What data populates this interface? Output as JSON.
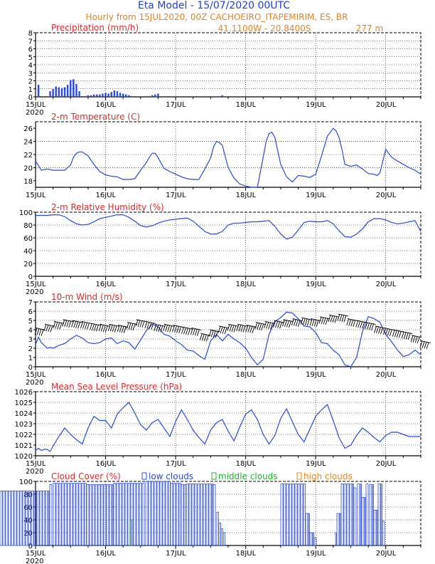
{
  "header": {
    "title": "Eta Model - 15/07/2020 00UTC",
    "line2": "Hourly from 15JUL2020, 00Z   CACHOEIRO_ITAPEMIRIM, ES, BR",
    "coords": "41.1100W - 20.8400S",
    "elevation": "277   m"
  },
  "colors": {
    "title": "#1f3fdc",
    "subtitle": "#e8821e",
    "panel_title": "#e8262b",
    "series": "#2848e8",
    "low_clouds": "#2848e8",
    "middle_clouds": "#1fae2a",
    "high_clouds": "#e8821e"
  },
  "x_axis": {
    "day_labels": [
      "15JUL",
      "16JUL",
      "17JUL",
      "18JUL",
      "19JUL",
      "20JUL"
    ],
    "year_label": "2020",
    "hours": [
      0,
      132
    ]
  },
  "chart_data": [
    {
      "type": "bar",
      "title": "Precipitation (mm/h)",
      "ylim": [
        0,
        8
      ],
      "yticks": [
        0,
        1,
        2,
        3,
        4,
        5,
        6,
        7,
        8
      ],
      "year_shown": true,
      "x_hours": [
        1,
        2,
        5,
        6,
        7,
        8,
        9,
        10,
        11,
        12,
        13,
        14,
        15,
        16,
        17,
        18,
        19,
        20,
        21,
        22,
        23,
        24,
        25,
        26,
        27,
        28,
        29,
        30,
        31,
        32,
        33,
        40,
        41,
        42,
        64,
        108
      ],
      "values": [
        1.5,
        0.1,
        0.7,
        1.0,
        1.3,
        1.2,
        1.1,
        1.2,
        1.5,
        2.1,
        2.2,
        1.6,
        0.7,
        0.1,
        0.1,
        0.2,
        0.2,
        0.3,
        0.3,
        0.3,
        0.4,
        0.5,
        0.4,
        0.6,
        0.8,
        0.7,
        0.5,
        0.4,
        0.3,
        0.2,
        0.1,
        0.2,
        0.3,
        0.4,
        0.2,
        0.1
      ]
    },
    {
      "type": "line",
      "title": "2-m Temperature (C)",
      "ylim": [
        17,
        27
      ],
      "yticks": [
        18,
        20,
        22,
        24,
        26
      ],
      "year_shown": false,
      "x": [
        0,
        2,
        4,
        6,
        8,
        10,
        12,
        13,
        14,
        15,
        16,
        18,
        20,
        22,
        24,
        26,
        28,
        30,
        32,
        34,
        36,
        38,
        39,
        40,
        41,
        42,
        44,
        46,
        48,
        50,
        52,
        54,
        56,
        58,
        60,
        61,
        62,
        63,
        64,
        66,
        68,
        70,
        72,
        74,
        76,
        78,
        79,
        80,
        81,
        82,
        84,
        86,
        88,
        90,
        92,
        94,
        96,
        98,
        100,
        102,
        103,
        104,
        105,
        106,
        108,
        110,
        112,
        114,
        116,
        117,
        118,
        120,
        122,
        124,
        126,
        128,
        130,
        132
      ],
      "y": [
        21.0,
        19.6,
        19.8,
        19.6,
        19.6,
        19.6,
        20.4,
        21.6,
        22.2,
        22.4,
        22.4,
        21.8,
        20.5,
        19.4,
        18.9,
        18.7,
        18.6,
        18.2,
        18.2,
        18.3,
        19.6,
        20.8,
        21.6,
        22.2,
        22.2,
        21.5,
        19.9,
        19.4,
        19.0,
        18.6,
        18.3,
        18.2,
        18.2,
        19.8,
        21.5,
        23.2,
        24.0,
        23.8,
        23.4,
        20.0,
        18.4,
        17.5,
        17.2,
        17.0,
        16.8,
        21.6,
        24.0,
        25.2,
        25.4,
        24.6,
        20.5,
        18.6,
        17.8,
        18.8,
        18.7,
        18.5,
        19.0,
        21.8,
        24.8,
        26.0,
        25.6,
        24.6,
        22.8,
        20.5,
        20.2,
        20.4,
        19.8,
        19.1,
        19.0,
        18.8,
        19.2,
        22.8,
        21.6,
        21.0,
        20.5,
        20.0,
        19.6,
        19.0
      ]
    },
    {
      "type": "line",
      "title": "2-m Relative Humidity (%)",
      "ylim": [
        0,
        100
      ],
      "yticks": [
        0,
        20,
        40,
        60,
        80,
        100
      ],
      "year_shown": true,
      "x": [
        0,
        2,
        4,
        6,
        8,
        10,
        12,
        14,
        16,
        18,
        20,
        22,
        24,
        26,
        28,
        30,
        32,
        34,
        36,
        38,
        40,
        42,
        44,
        46,
        48,
        50,
        52,
        54,
        56,
        58,
        60,
        62,
        64,
        66,
        68,
        70,
        72,
        74,
        76,
        78,
        80,
        82,
        84,
        86,
        88,
        90,
        92,
        94,
        96,
        98,
        100,
        102,
        104,
        106,
        108,
        110,
        112,
        114,
        116,
        118,
        120,
        122,
        124,
        126,
        128,
        130,
        132
      ],
      "y": [
        95,
        95,
        95,
        96,
        96,
        93,
        87,
        82,
        80,
        81,
        85,
        90,
        92,
        94,
        96,
        96,
        92,
        86,
        79,
        77,
        79,
        83,
        86,
        88,
        89,
        90,
        91,
        86,
        78,
        70,
        66,
        66,
        70,
        80,
        83,
        83,
        84,
        85,
        85,
        86,
        87,
        78,
        66,
        58,
        61,
        72,
        84,
        86,
        85,
        85,
        87,
        82,
        71,
        62,
        61,
        66,
        74,
        85,
        90,
        90,
        88,
        84,
        82,
        83,
        85,
        87,
        70
      ]
    },
    {
      "type": "line",
      "title": "10-m Wind (m/s)",
      "ylim": [
        0,
        7
      ],
      "yticks": [
        0,
        1,
        2,
        3,
        4,
        5,
        6,
        7
      ],
      "year_shown": true,
      "x": [
        0,
        1,
        2,
        3,
        4,
        5,
        6,
        8,
        10,
        12,
        14,
        16,
        18,
        20,
        22,
        24,
        26,
        28,
        30,
        32,
        34,
        36,
        38,
        40,
        42,
        44,
        46,
        48,
        50,
        52,
        54,
        56,
        58,
        60,
        62,
        64,
        66,
        68,
        70,
        72,
        74,
        76,
        78,
        80,
        82,
        84,
        86,
        88,
        90,
        92,
        94,
        96,
        98,
        100,
        102,
        104,
        106,
        108,
        110,
        112,
        114,
        116,
        118,
        120,
        122,
        124,
        126,
        128,
        130,
        132
      ],
      "y": [
        2.4,
        3.2,
        2.6,
        2.3,
        2.0,
        2.1,
        2.0,
        2.3,
        2.5,
        3.0,
        3.4,
        3.1,
        2.6,
        2.5,
        2.6,
        3.0,
        3.1,
        2.5,
        2.8,
        2.6,
        1.9,
        2.9,
        3.9,
        4.6,
        4.3,
        3.5,
        3.3,
        2.8,
        2.4,
        1.8,
        1.7,
        1.2,
        0.8,
        2.8,
        3.5,
        2.8,
        3.5,
        3.0,
        2.6,
        2.0,
        1.0,
        0.2,
        0.8,
        3.5,
        4.9,
        5.3,
        5.9,
        5.8,
        5.2,
        4.4,
        4.3,
        3.7,
        2.6,
        2.5,
        1.8,
        1.3,
        0.2,
        0.0,
        1.0,
        3.8,
        5.4,
        5.2,
        4.8,
        3.5,
        2.7,
        1.8,
        1.1,
        1.3,
        1.8,
        1.3
      ],
      "barb_height": [
        4.2,
        4.6,
        4.9,
        5.1,
        5.0,
        4.9,
        4.7,
        4.6,
        4.6,
        4.5,
        4.8,
        5.1,
        4.9,
        4.6,
        4.6,
        4.5,
        4.3,
        4.2,
        3.6,
        4.0,
        4.4,
        4.6,
        4.6,
        4.5,
        4.8,
        4.9,
        5.0,
        5.1,
        5.2,
        5.3,
        5.2,
        5.4,
        5.6,
        5.7,
        5.2,
        5.0,
        4.8,
        4.4,
        4.2,
        4.0,
        3.8,
        3.4,
        2.8
      ]
    },
    {
      "type": "line",
      "title": "Mean Sea Level Pressure (hPa)",
      "ylim": [
        1020,
        1026
      ],
      "yticks": [
        1020,
        1021,
        1022,
        1023,
        1024,
        1025,
        1026
      ],
      "year_shown": true,
      "x": [
        0,
        1,
        2,
        3,
        4,
        5,
        6,
        8,
        10,
        12,
        14,
        16,
        18,
        20,
        22,
        24,
        26,
        28,
        30,
        32,
        34,
        36,
        38,
        40,
        42,
        44,
        46,
        48,
        50,
        52,
        54,
        56,
        58,
        60,
        62,
        64,
        66,
        68,
        70,
        72,
        74,
        76,
        78,
        80,
        82,
        84,
        86,
        88,
        90,
        92,
        94,
        96,
        98,
        100,
        102,
        104,
        106,
        108,
        110,
        112,
        114,
        116,
        118,
        120,
        122,
        124,
        126,
        128,
        130,
        132
      ],
      "y": [
        1020.5,
        1020.7,
        1020.5,
        1020.6,
        1020.6,
        1020.4,
        1020.9,
        1021.8,
        1022.6,
        1022.0,
        1021.5,
        1021.1,
        1022.6,
        1023.7,
        1023.3,
        1023.3,
        1022.6,
        1023.9,
        1024.5,
        1025.0,
        1024.0,
        1022.9,
        1022.4,
        1023.1,
        1023.4,
        1022.6,
        1021.8,
        1023.2,
        1024.3,
        1023.4,
        1022.4,
        1021.7,
        1021.1,
        1022.4,
        1023.1,
        1023.4,
        1022.3,
        1021.4,
        1022.7,
        1023.9,
        1024.3,
        1023.4,
        1022.0,
        1021.1,
        1021.9,
        1023.5,
        1024.4,
        1023.2,
        1022.0,
        1021.3,
        1022.5,
        1023.7,
        1024.3,
        1024.8,
        1023.3,
        1021.7,
        1020.7,
        1021.0,
        1021.9,
        1022.6,
        1022.2,
        1021.7,
        1021.3,
        1021.9,
        1022.2,
        1022.2,
        1022.0,
        1021.8,
        1021.8,
        1021.8
      ]
    },
    {
      "type": "bar",
      "title": "Cloud Cover (%)",
      "ylim": [
        0,
        100
      ],
      "yticks": [
        0,
        20,
        40,
        60,
        80,
        100
      ],
      "year_shown": true,
      "legend": {
        "low": "low clouds",
        "middle": "middle clouds",
        "high": "high clouds"
      },
      "low": [
        [
          0,
          70,
          85
        ],
        [
          70,
          75,
          95
        ],
        [
          75,
          122,
          97
        ],
        [
          122,
          160,
          95
        ],
        [
          160,
          205,
          97
        ],
        [
          205,
          240,
          100
        ],
        [
          240,
          255,
          97
        ],
        [
          255,
          262,
          95
        ],
        [
          262,
          300,
          96
        ],
        [
          300,
          305,
          95
        ],
        [
          305,
          308,
          52
        ],
        [
          308,
          311,
          35
        ],
        [
          311,
          314,
          26
        ],
        [
          314,
          317,
          20
        ],
        [
          395,
          430,
          96
        ],
        [
          430,
          436,
          50
        ],
        [
          436,
          442,
          20
        ],
        [
          442,
          446,
          12
        ],
        [
          472,
          474,
          20
        ],
        [
          474,
          480,
          50
        ],
        [
          480,
          488,
          96
        ],
        [
          488,
          498,
          96
        ],
        [
          498,
          503,
          90
        ],
        [
          503,
          509,
          96
        ],
        [
          509,
          515,
          75
        ],
        [
          515,
          520,
          96
        ],
        [
          520,
          526,
          95
        ],
        [
          526,
          532,
          55
        ],
        [
          532,
          538,
          96
        ],
        [
          538,
          543,
          38
        ]
      ],
      "middle": [
        [
          183,
          186,
          40
        ]
      ],
      "high": []
    }
  ]
}
